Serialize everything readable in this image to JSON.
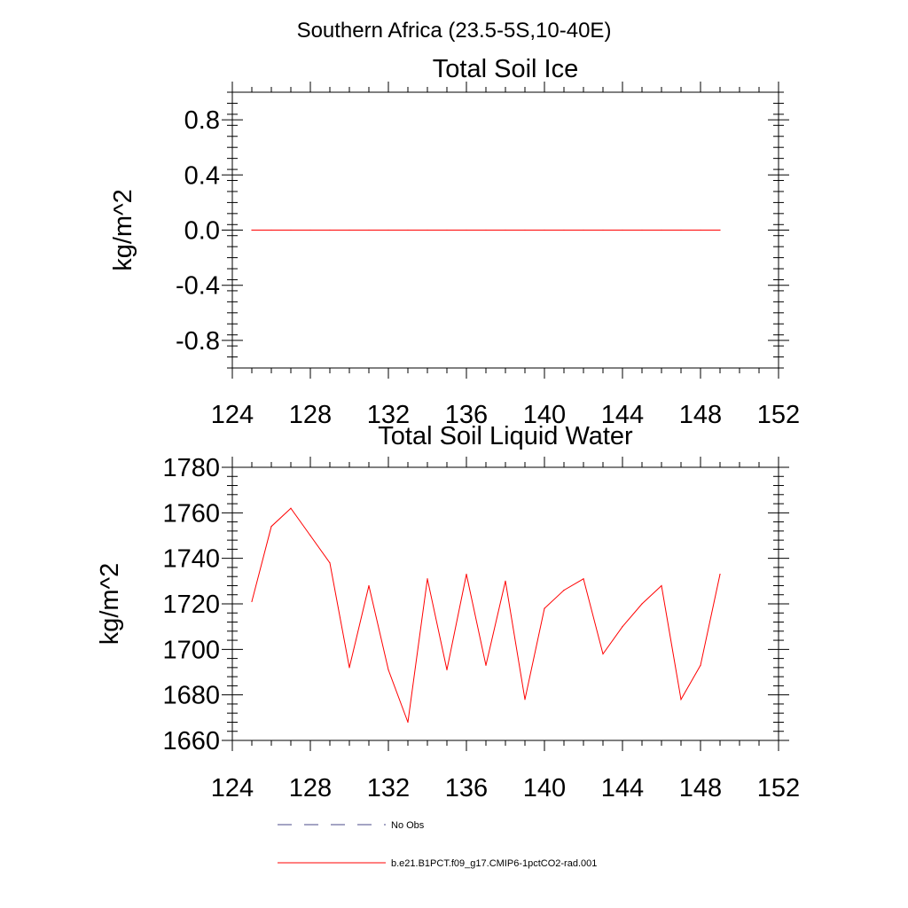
{
  "figure": {
    "region_title": "Southern Africa (23.5-5S,10-40E)"
  },
  "colors": {
    "model_line": "#ff0000",
    "obs_line": "#4a4a8a",
    "axis": "#000000"
  },
  "chart_data": [
    {
      "type": "line",
      "title": "Total Soil Ice",
      "ylabel": "kg/m^2",
      "xlabel": "",
      "xlim": [
        124,
        152
      ],
      "ylim": [
        -1.0,
        1.0
      ],
      "x_ticks": [
        "124",
        "128",
        "132",
        "136",
        "140",
        "144",
        "148",
        "152"
      ],
      "y_ticks": [
        "-0.8",
        "-0.4",
        "0.0",
        "0.4",
        "0.8"
      ],
      "grid": false,
      "series": [
        {
          "name": "b.e21.B1PCT.f09_g17.CMIP6-1pctCO2-rad.001",
          "x": [
            125,
            126,
            127,
            128,
            129,
            130,
            131,
            132,
            133,
            134,
            135,
            136,
            137,
            138,
            139,
            140,
            141,
            142,
            143,
            144,
            145,
            146,
            147,
            148,
            149
          ],
          "values": [
            0,
            0,
            0,
            0,
            0,
            0,
            0,
            0,
            0,
            0,
            0,
            0,
            0,
            0,
            0,
            0,
            0,
            0,
            0,
            0,
            0,
            0,
            0,
            0,
            0
          ]
        }
      ]
    },
    {
      "type": "line",
      "title": "Total Soil Liquid Water",
      "ylabel": "kg/m^2",
      "xlabel": "",
      "xlim": [
        124,
        152
      ],
      "ylim": [
        1660,
        1780
      ],
      "x_ticks": [
        "124",
        "128",
        "132",
        "136",
        "140",
        "144",
        "148",
        "152"
      ],
      "y_ticks": [
        "1660",
        "1680",
        "1700",
        "1720",
        "1740",
        "1760",
        "1780"
      ],
      "grid": false,
      "series": [
        {
          "name": "b.e21.B1PCT.f09_g17.CMIP6-1pctCO2-rad.001",
          "x": [
            125,
            126,
            127,
            128,
            129,
            130,
            131,
            132,
            133,
            134,
            135,
            136,
            137,
            138,
            139,
            140,
            141,
            142,
            143,
            144,
            145,
            146,
            147,
            148,
            149
          ],
          "values": [
            1721,
            1754,
            1762,
            1750,
            1738,
            1692,
            1728,
            1691,
            1668,
            1731,
            1691,
            1733,
            1693,
            1730,
            1678,
            1718,
            1726,
            1731,
            1698,
            1710,
            1720,
            1728,
            1678,
            1693,
            1733
          ]
        }
      ]
    }
  ],
  "legend": {
    "placement": "bottom",
    "items": [
      {
        "label": "No Obs",
        "style": "dashed"
      },
      {
        "label": "b.e21.B1PCT.f09_g17.CMIP6-1pctCO2-rad.001",
        "style": "solid"
      }
    ]
  }
}
